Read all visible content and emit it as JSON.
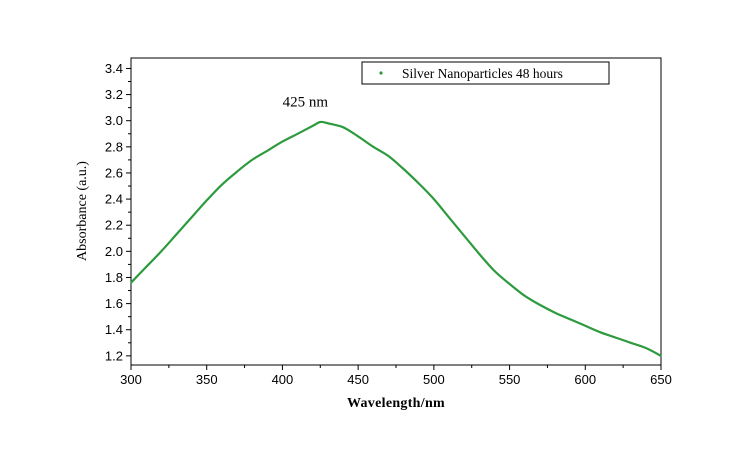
{
  "chart_data": {
    "type": "line",
    "title": "",
    "xlabel": "Wavelength/nm",
    "ylabel": "Absorbance (a.u.)",
    "xlim": [
      300,
      650
    ],
    "ylim": [
      1.13,
      3.48
    ],
    "xticks": [
      300,
      350,
      400,
      450,
      500,
      550,
      600,
      650
    ],
    "xtick_labels": [
      "300",
      "350",
      "400",
      "450",
      "500",
      "550",
      "600",
      "650"
    ],
    "yticks": [
      1.2,
      1.4,
      1.6,
      1.8,
      2.0,
      2.2,
      2.4,
      2.6,
      2.8,
      3.0,
      3.2,
      3.4
    ],
    "ytick_labels": [
      "1.2",
      "1.4",
      "1.6",
      "1.8",
      "2.0",
      "2.2",
      "2.4",
      "2.6",
      "2.8",
      "3.0",
      "3.2",
      "3.4"
    ],
    "grid": false,
    "legend_position": "top-right",
    "annotations": [
      {
        "text": "425 nm",
        "x": 425,
        "y": 3.0
      }
    ],
    "series": [
      {
        "name": "Silver Nanoparticles 48 hours",
        "color": "#2e9a3e",
        "x": [
          300,
          310,
          320,
          330,
          340,
          350,
          360,
          370,
          380,
          390,
          400,
          410,
          420,
          425,
          430,
          440,
          450,
          460,
          470,
          480,
          490,
          500,
          510,
          520,
          530,
          540,
          550,
          560,
          570,
          580,
          590,
          600,
          610,
          620,
          630,
          640,
          650
        ],
        "y": [
          1.76,
          1.88,
          2.0,
          2.13,
          2.26,
          2.39,
          2.51,
          2.61,
          2.7,
          2.77,
          2.84,
          2.9,
          2.96,
          2.99,
          2.98,
          2.95,
          2.88,
          2.8,
          2.73,
          2.63,
          2.52,
          2.4,
          2.26,
          2.12,
          1.98,
          1.85,
          1.75,
          1.66,
          1.59,
          1.53,
          1.48,
          1.43,
          1.38,
          1.34,
          1.3,
          1.26,
          1.2
        ]
      }
    ]
  }
}
